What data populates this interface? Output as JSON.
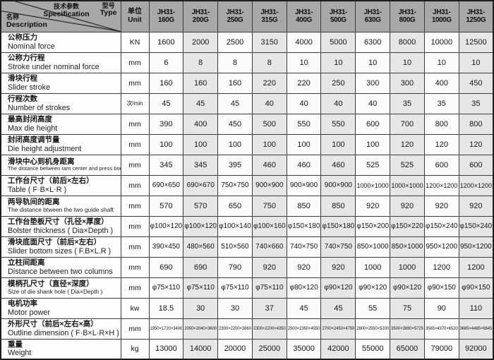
{
  "header": {
    "corner": {
      "spec_zh": "技术参数",
      "spec_en": "Specification",
      "type_zh": "型号",
      "type_en": "Type",
      "desc_zh": "名称",
      "desc_en": "Description"
    },
    "unit_zh": "单位",
    "unit_en": "Unit",
    "models": [
      "JH31-160G",
      "JH31-200G",
      "JH31-250G",
      "JH31-315G",
      "JH31-400G",
      "JH31-500G",
      "JH31-630G",
      "JH31-800G",
      "JH31-1000G",
      "JH31-1250G"
    ]
  },
  "rows": [
    {
      "zh": "公称压力",
      "en": "Nominal force",
      "unit": "KN",
      "values": [
        "1600",
        "2000",
        "2500",
        "3150",
        "4000",
        "5000",
        "6300",
        "8000",
        "10000",
        "12500"
      ]
    },
    {
      "zh": "公称力行程",
      "en": "Stroke under nominal force",
      "unit": "mm",
      "values": [
        "6",
        "8",
        "8",
        "8",
        "10",
        "10",
        "10",
        "10",
        "10",
        "10"
      ]
    },
    {
      "zh": "滑块行程",
      "en": "Slider stroke",
      "unit": "mm",
      "values": [
        "160",
        "160",
        "160",
        "220",
        "220",
        "250",
        "300",
        "300",
        "400",
        "450"
      ]
    },
    {
      "zh": "行程次数",
      "en": "Number of strokes",
      "unit": "次/min",
      "values": [
        "45",
        "45",
        "45",
        "40",
        "40",
        "40",
        "40",
        "35",
        "35",
        "35"
      ]
    },
    {
      "zh": "最高封闭高度",
      "en": "Max die height",
      "unit": "mm",
      "values": [
        "390",
        "400",
        "450",
        "500",
        "550",
        "550",
        "600",
        "700",
        "800",
        "800"
      ]
    },
    {
      "zh": "封闭高度调节量",
      "en": "Die height adjustment",
      "unit": "mm",
      "values": [
        "100",
        "100",
        "100",
        "100",
        "100",
        "100",
        "100",
        "120",
        "120",
        "120"
      ]
    },
    {
      "zh": "滑块中心到机身距离",
      "en": "The distance between ram center and press body",
      "unit": "mm",
      "values": [
        "345",
        "345",
        "395",
        "460",
        "460",
        "460",
        "525",
        "525",
        "600",
        "600"
      ]
    },
    {
      "zh": "工作台尺寸（前后×左右）",
      "en": "Table ( F·B×L·R )",
      "unit": "mm",
      "values": [
        "690×650",
        "690×670",
        "750×750",
        "900×900",
        "900×900",
        "900×900",
        "1000×1000",
        "1000×1000",
        "1200×1200",
        "1200×1200"
      ]
    },
    {
      "zh": "两导轨间的距离",
      "en": "The distance btween the two guide shaft",
      "unit": "mm",
      "values": [
        "570",
        "570",
        "650",
        "750",
        "850",
        "850",
        "920",
        "920",
        "920",
        "920"
      ]
    },
    {
      "zh": "工作台垫板尺寸（孔径×厚度）",
      "en": "Bolster thickness ( Dia×Depth )",
      "unit": "mm",
      "values": [
        "φ100×120",
        "φ100×120",
        "φ100×140",
        "φ100×160",
        "φ150×180",
        "φ150×180",
        "φ150×200",
        "φ150×220",
        "φ150×240",
        "φ150×240"
      ]
    },
    {
      "zh": "滑块底面尺寸（前后×左右）",
      "en": "Slider bottom sizes ( F.B×L.R )",
      "unit": "mm",
      "values": [
        "390×450",
        "480×560",
        "510×560",
        "740×660",
        "740×750",
        "740×750",
        "850×1000",
        "850×1000",
        "950×1200",
        "950×1200"
      ]
    },
    {
      "zh": "立柱间距离",
      "en": "Distance between two columns",
      "unit": "mm",
      "values": [
        "690",
        "690",
        "790",
        "920",
        "920",
        "920",
        "1000",
        "1000",
        "1200",
        "1200"
      ]
    },
    {
      "zh": "模柄孔尺寸（直径×深度）",
      "en": "Size of die shank hole ( Dia×Depth )",
      "unit": "mm",
      "values": [
        "φ75×110",
        "φ75×110",
        "φ75×110",
        "φ75×110",
        "φ80×120",
        "φ90×120",
        "φ90×120",
        "φ90×120",
        "φ90×150",
        "φ90×150"
      ]
    },
    {
      "zh": "电机功率",
      "en": "Motor power",
      "unit": "kw",
      "values": [
        "18.5",
        "30",
        "30",
        "37",
        "45",
        "45",
        "55",
        "75",
        "90",
        "110"
      ]
    },
    {
      "zh": "外形尺寸（前后×左右×高）",
      "en": "Outline dimension ( F·B×L·R×H )",
      "unit": "mm",
      "values": [
        "1950×1720×3400",
        "2050×2040×3600",
        "2300×2200×3860",
        "2300×2200×4350",
        "2500×2350×4550",
        "2700×2450×4750",
        "2800×2550×5200",
        "3500×3890×5725",
        "3565×4370×6520",
        "3685×4485×6645"
      ]
    },
    {
      "zh": "重量",
      "en": "Weight",
      "unit": "kg",
      "values": [
        "13000",
        "14000",
        "20000",
        "25000",
        "35000",
        "42000",
        "55000",
        "65000",
        "79000",
        "92000"
      ]
    }
  ],
  "colors": {
    "header_bg": "#a8a8a8",
    "col_shaded": "#e6e6e6",
    "col_plain": "#fbfbfb",
    "border": "#3c3c3c"
  }
}
